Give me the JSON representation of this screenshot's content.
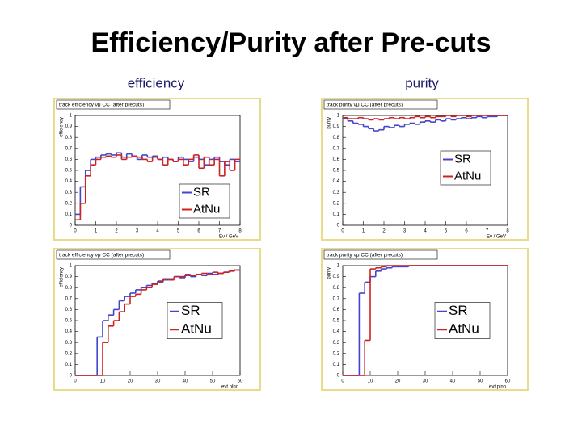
{
  "title": "Efficiency/Purity after Pre-cuts",
  "column_labels": [
    "efficiency",
    "purity"
  ],
  "chart_data": [
    {
      "type": "histogram",
      "title": "track efficiency νμ CC (after precuts)",
      "ylabel": "efficiency",
      "xlabel": "Eν / GeV",
      "bins": [
        0,
        0.25,
        0.5,
        0.75,
        1,
        1.25,
        1.5,
        1.75,
        2,
        2.25,
        2.5,
        2.75,
        3,
        3.25,
        3.5,
        3.75,
        4,
        4.25,
        4.5,
        4.75,
        5,
        5.25,
        5.5,
        5.75,
        6,
        6.25,
        6.5,
        6.75,
        7,
        7.25,
        7.5,
        7.75,
        8
      ],
      "series": [
        {
          "name": "SR",
          "color": "#4444cc",
          "values": [
            0.1,
            0.35,
            0.5,
            0.6,
            0.62,
            0.64,
            0.65,
            0.64,
            0.66,
            0.62,
            0.65,
            0.63,
            0.6,
            0.64,
            0.62,
            0.63,
            0.6,
            0.62,
            0.6,
            0.58,
            0.62,
            0.6,
            0.58,
            0.62,
            0.6,
            0.55,
            0.6,
            0.62,
            0.58,
            0.55,
            0.6,
            0.58
          ]
        },
        {
          "name": "AtNu",
          "color": "#cc2222",
          "values": [
            0.05,
            0.2,
            0.45,
            0.55,
            0.6,
            0.62,
            0.63,
            0.62,
            0.64,
            0.6,
            0.62,
            0.63,
            0.62,
            0.6,
            0.58,
            0.62,
            0.6,
            0.55,
            0.6,
            0.58,
            0.6,
            0.55,
            0.6,
            0.64,
            0.52,
            0.62,
            0.55,
            0.6,
            0.45,
            0.58,
            0.5,
            0.6
          ]
        }
      ],
      "xlim": [
        0,
        8
      ],
      "xticks": [
        0,
        1,
        2,
        3,
        4,
        5,
        6,
        7,
        8
      ],
      "ylim": [
        0,
        1
      ],
      "yticks": [
        0,
        0.1,
        0.2,
        0.3,
        0.4,
        0.5,
        0.6,
        0.7,
        0.8,
        0.9,
        1
      ],
      "legend": "lower right"
    },
    {
      "type": "histogram",
      "title": "track purity νμ CC (after precuts)",
      "ylabel": "purity",
      "xlabel": "Eν / GeV",
      "bins": [
        0,
        0.25,
        0.5,
        0.75,
        1,
        1.25,
        1.5,
        1.75,
        2,
        2.25,
        2.5,
        2.75,
        3,
        3.25,
        3.5,
        3.75,
        4,
        4.25,
        4.5,
        4.75,
        5,
        5.25,
        5.5,
        5.75,
        6,
        6.25,
        6.5,
        6.75,
        7,
        7.25,
        7.5,
        7.75,
        8
      ],
      "series": [
        {
          "name": "SR",
          "color": "#4444cc",
          "values": [
            0.97,
            0.95,
            0.93,
            0.92,
            0.9,
            0.88,
            0.86,
            0.87,
            0.9,
            0.89,
            0.91,
            0.9,
            0.92,
            0.93,
            0.92,
            0.94,
            0.95,
            0.94,
            0.96,
            0.95,
            0.97,
            0.96,
            0.97,
            0.98,
            0.97,
            0.98,
            0.99,
            0.98,
            0.99,
            0.99,
            1,
            1
          ]
        },
        {
          "name": "AtNu",
          "color": "#cc2222",
          "values": [
            0.98,
            0.97,
            0.97,
            0.98,
            0.97,
            0.96,
            0.97,
            0.96,
            0.97,
            0.98,
            0.97,
            0.98,
            0.97,
            0.98,
            0.99,
            0.98,
            0.99,
            0.98,
            0.99,
            0.99,
            1,
            0.99,
            1,
            1,
            0.99,
            1,
            1,
            1,
            1,
            1,
            1,
            1
          ]
        }
      ],
      "xlim": [
        0,
        8
      ],
      "xticks": [
        0,
        1,
        2,
        3,
        4,
        5,
        6,
        7,
        8
      ],
      "ylim": [
        0,
        1
      ],
      "yticks": [
        0,
        0.1,
        0.2,
        0.3,
        0.4,
        0.5,
        0.6,
        0.7,
        0.8,
        0.9,
        1
      ],
      "legend": "center right"
    },
    {
      "type": "histogram",
      "title": "track efficiency νμ CC (after precuts)",
      "ylabel": "efficiency",
      "xlabel": "evt plno",
      "bins": [
        0,
        2,
        4,
        6,
        8,
        10,
        12,
        14,
        16,
        18,
        20,
        22,
        24,
        26,
        28,
        30,
        32,
        34,
        36,
        38,
        40,
        42,
        44,
        46,
        48,
        50,
        52,
        54,
        56,
        58,
        60
      ],
      "series": [
        {
          "name": "SR",
          "color": "#4444cc",
          "values": [
            0,
            0,
            0,
            0,
            0.35,
            0.5,
            0.55,
            0.6,
            0.68,
            0.72,
            0.75,
            0.78,
            0.8,
            0.82,
            0.84,
            0.86,
            0.87,
            0.88,
            0.9,
            0.89,
            0.91,
            0.9,
            0.92,
            0.91,
            0.93,
            0.92,
            0.93,
            0.94,
            0.95,
            0.96
          ]
        },
        {
          "name": "AtNu",
          "color": "#cc2222",
          "values": [
            0,
            0,
            0,
            0,
            0,
            0.3,
            0.45,
            0.5,
            0.58,
            0.65,
            0.72,
            0.74,
            0.78,
            0.8,
            0.83,
            0.85,
            0.88,
            0.87,
            0.9,
            0.9,
            0.92,
            0.91,
            0.92,
            0.93,
            0.92,
            0.94,
            0.93,
            0.94,
            0.95,
            0.96
          ]
        }
      ],
      "xlim": [
        0,
        60
      ],
      "xticks": [
        0,
        10,
        20,
        30,
        40,
        50,
        60
      ],
      "ylim": [
        0,
        1
      ],
      "yticks": [
        0,
        0.1,
        0.2,
        0.3,
        0.4,
        0.5,
        0.6,
        0.7,
        0.8,
        0.9,
        1
      ],
      "legend": "center right"
    },
    {
      "type": "histogram",
      "title": "track purity νμ CC (after precuts)",
      "ylabel": "purity",
      "xlabel": "evt plno",
      "bins": [
        0,
        2,
        4,
        6,
        8,
        10,
        12,
        14,
        16,
        18,
        20,
        22,
        24,
        26,
        28,
        30,
        32,
        34,
        36,
        38,
        40,
        42,
        44,
        46,
        48,
        50,
        52,
        54,
        56,
        58,
        60
      ],
      "series": [
        {
          "name": "SR",
          "color": "#4444cc",
          "values": [
            0,
            0,
            0,
            0.75,
            0.85,
            0.9,
            0.95,
            0.97,
            0.98,
            0.99,
            0.99,
            0.99,
            1,
            1,
            1,
            1,
            1,
            1,
            1,
            1,
            1,
            1,
            1,
            1,
            1,
            1,
            1,
            1,
            1,
            1
          ]
        },
        {
          "name": "AtNu",
          "color": "#cc2222",
          "values": [
            0,
            0,
            0,
            0,
            0.32,
            0.97,
            0.98,
            0.99,
            1,
            1,
            1,
            1,
            1,
            1,
            1,
            1,
            1,
            1,
            1,
            1,
            1,
            1,
            1,
            1,
            1,
            1,
            1,
            1,
            1,
            1
          ]
        }
      ],
      "xlim": [
        0,
        60
      ],
      "xticks": [
        0,
        10,
        20,
        30,
        40,
        50,
        60
      ],
      "ylim": [
        0,
        1
      ],
      "yticks": [
        0,
        0.1,
        0.2,
        0.3,
        0.4,
        0.5,
        0.6,
        0.7,
        0.8,
        0.9,
        1
      ],
      "legend": "center right"
    }
  ]
}
